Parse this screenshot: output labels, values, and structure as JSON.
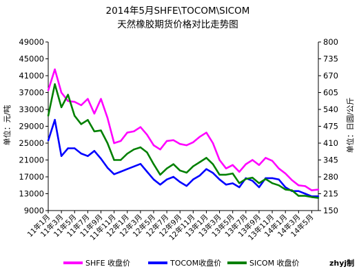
{
  "chart_data": {
    "type": "line",
    "title": "2014年5月SHFE\\TOCOM\\SICOM",
    "subtitle": "天然橡胶期货价格对比走势图",
    "ylabel_left": "单位：元/吨",
    "ylabel_right": "单位：日圆/公斤",
    "ylim_left": [
      9000,
      49000
    ],
    "yticks_left": [
      9000,
      13000,
      17000,
      21000,
      25000,
      29000,
      33000,
      37000,
      41000,
      45000,
      49000
    ],
    "ylim_right": [
      150,
      800
    ],
    "yticks_right": [
      150,
      215,
      280,
      345,
      410,
      475,
      540,
      605,
      670,
      735,
      800
    ],
    "x_start": "2011-01",
    "x_end": "2014-06",
    "x_ticks": [
      "11年1月",
      "11年3月",
      "11年5月",
      "11年7月",
      "11年9月",
      "11年11月",
      "12年1月",
      "12年3月",
      "12年5月",
      "12年7月",
      "12年9月",
      "12年11月",
      "13年1月",
      "13年3月",
      "13年5月",
      "13年7月",
      "13年9月",
      "13年11月",
      "14年1月",
      "14年3月",
      "14年5月"
    ],
    "grid": false,
    "legend_position": "bottom",
    "series": [
      {
        "name": "SHFE 收盘价",
        "axis": "left",
        "color": "#ff00ff",
        "x": [
          "2011-01",
          "2011-02",
          "2011-03",
          "2011-04",
          "2011-05",
          "2011-06",
          "2011-07",
          "2011-08",
          "2011-09",
          "2011-10",
          "2011-11",
          "2011-12",
          "2012-01",
          "2012-02",
          "2012-03",
          "2012-04",
          "2012-05",
          "2012-06",
          "2012-07",
          "2012-08",
          "2012-09",
          "2012-10",
          "2012-11",
          "2012-12",
          "2013-01",
          "2013-02",
          "2013-03",
          "2013-04",
          "2013-05",
          "2013-06",
          "2013-07",
          "2013-08",
          "2013-09",
          "2013-10",
          "2013-11",
          "2013-12",
          "2014-01",
          "2014-02",
          "2014-03",
          "2014-04",
          "2014-05",
          "2014-06"
        ],
        "values": [
          37500,
          42500,
          37000,
          35000,
          34800,
          34000,
          35500,
          32000,
          35500,
          31000,
          25000,
          25500,
          27500,
          27800,
          28800,
          27000,
          24500,
          23500,
          25500,
          25700,
          24800,
          24500,
          25200,
          26500,
          27500,
          25000,
          21000,
          19000,
          19800,
          18200,
          20000,
          21000,
          19800,
          21500,
          20800,
          19000,
          17800,
          16200,
          15000,
          14800,
          13800,
          14000
        ]
      },
      {
        "name": "TOCOM收盘价",
        "axis": "right",
        "color": "#0000ff",
        "x": [
          "2011-01",
          "2011-02",
          "2011-03",
          "2011-04",
          "2011-05",
          "2011-06",
          "2011-07",
          "2011-08",
          "2011-09",
          "2011-10",
          "2011-11",
          "2011-12",
          "2012-01",
          "2012-02",
          "2012-03",
          "2012-04",
          "2012-05",
          "2012-06",
          "2012-07",
          "2012-08",
          "2012-09",
          "2012-10",
          "2012-11",
          "2012-12",
          "2013-01",
          "2013-02",
          "2013-03",
          "2013-04",
          "2013-05",
          "2013-06",
          "2013-07",
          "2013-08",
          "2013-09",
          "2013-10",
          "2013-11",
          "2013-12",
          "2014-01",
          "2014-02",
          "2014-03",
          "2014-04",
          "2014-05",
          "2014-06"
        ],
        "values": [
          420,
          500,
          360,
          390,
          390,
          370,
          360,
          380,
          350,
          315,
          290,
          300,
          310,
          320,
          330,
          300,
          270,
          250,
          270,
          280,
          260,
          245,
          270,
          285,
          310,
          295,
          270,
          250,
          255,
          240,
          275,
          265,
          240,
          275,
          275,
          270,
          240,
          225,
          225,
          215,
          205,
          205
        ]
      },
      {
        "name": "SICOM 收盘价",
        "axis": "left",
        "color": "#008000",
        "x": [
          "2011-01",
          "2011-02",
          "2011-03",
          "2011-04",
          "2011-05",
          "2011-06",
          "2011-07",
          "2011-08",
          "2011-09",
          "2011-10",
          "2011-11",
          "2011-12",
          "2012-01",
          "2012-02",
          "2012-03",
          "2012-04",
          "2012-05",
          "2012-06",
          "2012-07",
          "2012-08",
          "2012-09",
          "2012-10",
          "2012-11",
          "2012-12",
          "2013-01",
          "2013-02",
          "2013-03",
          "2013-04",
          "2013-05",
          "2013-06",
          "2013-07",
          "2013-08",
          "2013-09",
          "2013-10",
          "2013-11",
          "2013-12",
          "2014-01",
          "2014-02",
          "2014-03",
          "2014-04",
          "2014-05",
          "2014-06"
        ],
        "values": [
          31500,
          39000,
          33500,
          36500,
          31500,
          29500,
          30500,
          27800,
          28000,
          25000,
          21000,
          21000,
          22500,
          23500,
          24000,
          22800,
          20000,
          17500,
          19000,
          20000,
          18500,
          18000,
          19500,
          20500,
          21500,
          20000,
          17500,
          17500,
          17800,
          15500,
          16500,
          16800,
          15500,
          16500,
          15500,
          15000,
          14000,
          13800,
          12500,
          12500,
          12200,
          12000
        ]
      }
    ]
  },
  "legend": [
    {
      "label": "SHFE 收盘价",
      "color": "#ff00ff"
    },
    {
      "label": "TOCOM收盘价",
      "color": "#0000ff"
    },
    {
      "label": "SICOM 收盘价",
      "color": "#008000"
    }
  ],
  "credit": "zhyj制"
}
